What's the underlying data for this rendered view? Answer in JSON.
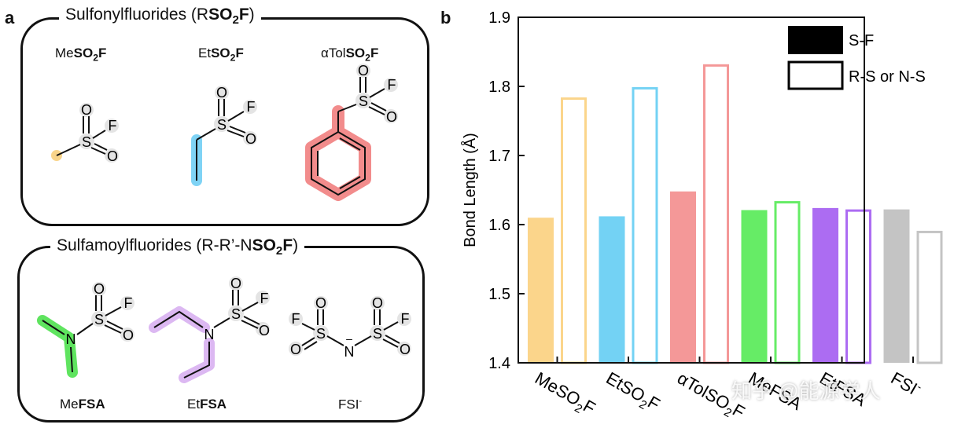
{
  "panel_a": {
    "letter": "a",
    "sulfonyl": {
      "title_prefix": "Sulfonylfluorides (R",
      "title_bold": "SO",
      "title_sub": "2",
      "title_bold2": "F",
      "title_suffix": ")",
      "molecules": [
        {
          "prefix": "Me",
          "bold": "SO",
          "sub": "2",
          "bold2": "F",
          "highlight": "#f9d48a"
        },
        {
          "prefix": "Et",
          "bold": "SO",
          "sub": "2",
          "bold2": "F",
          "highlight": "#7fd3f5"
        },
        {
          "prefix": "αTol",
          "bold": "SO",
          "sub": "2",
          "bold2": "F",
          "highlight": "#f28c8c"
        }
      ]
    },
    "sulfamoyl": {
      "title_prefix": "Sulfamoylfluorides (R-R’-N",
      "title_bold": "SO",
      "title_sub": "2",
      "title_bold2": "F",
      "title_suffix": ")",
      "molecules": [
        {
          "prefix": "Me",
          "bold": "FSA",
          "highlight": "#5fe45f"
        },
        {
          "prefix": "Et",
          "bold": "FSA",
          "highlight": "#dcb8f2"
        },
        {
          "prefix": "FSI",
          "sup": "-",
          "highlight": ""
        }
      ]
    },
    "atoms": {
      "S": "S",
      "O": "O",
      "F": "F",
      "N": "N",
      "minus": "–"
    }
  },
  "panel_b": {
    "letter": "b",
    "chart_data": {
      "type": "bar",
      "ylabel": "Bond Length (Å)",
      "xlabel": "",
      "ylim": [
        1.4,
        1.9
      ],
      "yticks": [
        1.4,
        1.5,
        1.6,
        1.7,
        1.8,
        1.9
      ],
      "ytick_labels": [
        "1.4",
        "1.5",
        "1.6",
        "1.7",
        "1.8",
        "1.9"
      ],
      "categories": [
        {
          "base": "MeSO",
          "sub": "2",
          "tail": "F"
        },
        {
          "base": "EtSO",
          "sub": "2",
          "tail": "F"
        },
        {
          "base": "αTolSO",
          "sub": "2",
          "tail": "F"
        },
        {
          "base": "MeFSA",
          "sub": "",
          "tail": ""
        },
        {
          "base": "EtFSA",
          "sub": "",
          "tail": ""
        },
        {
          "base": "FSI",
          "sub": "",
          "tail": "-"
        }
      ],
      "colors": [
        "#fbd58b",
        "#73d2f4",
        "#f49898",
        "#66ec66",
        "#ac6cf2",
        "#c4c4c4"
      ],
      "series": [
        {
          "name": "S-F",
          "style": "filled",
          "values": [
            1.61,
            1.612,
            1.648,
            1.621,
            1.624,
            1.622
          ]
        },
        {
          "name": "R-S or N-S",
          "style": "outline",
          "values": [
            1.784,
            1.799,
            1.832,
            1.634,
            1.622,
            1.591
          ]
        }
      ],
      "legend": {
        "position": "top-right",
        "entries": [
          "S-F",
          "R-S or N-S"
        ]
      }
    }
  },
  "watermark": "知乎 @能源学人"
}
